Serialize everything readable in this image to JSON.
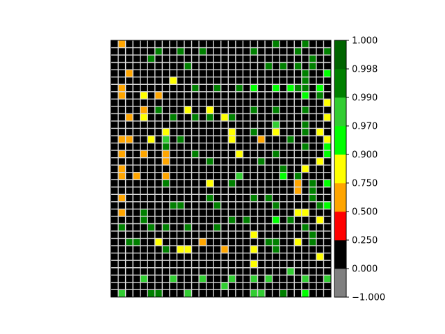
{
  "chart_data": {
    "type": "heatmap",
    "title": "",
    "xlabel": "",
    "ylabel": "",
    "grid": true,
    "grid_color": "#d9d9d9",
    "frame_color": "#000000",
    "rows": 35,
    "cols": 30,
    "cells": [
      [
        0,
        1
      ],
      [
        0,
        22
      ],
      [
        0,
        26
      ],
      [
        1,
        6
      ],
      [
        1,
        9
      ],
      [
        1,
        12
      ],
      [
        1,
        19
      ],
      [
        1,
        25
      ],
      [
        1,
        29
      ],
      [
        2,
        5
      ],
      [
        2,
        27
      ],
      [
        3,
        10
      ],
      [
        3,
        21
      ],
      [
        3,
        23
      ],
      [
        3,
        25
      ],
      [
        3,
        27
      ],
      [
        4,
        2
      ],
      [
        4,
        26
      ],
      [
        4,
        29
      ],
      [
        5,
        8
      ],
      [
        5,
        26
      ],
      [
        6,
        1
      ],
      [
        6,
        11
      ],
      [
        6,
        14
      ],
      [
        6,
        17
      ],
      [
        6,
        19
      ],
      [
        6,
        22
      ],
      [
        6,
        24
      ],
      [
        6,
        25
      ],
      [
        6,
        26
      ],
      [
        6,
        28
      ],
      [
        7,
        1
      ],
      [
        7,
        4
      ],
      [
        7,
        6
      ],
      [
        7,
        26
      ],
      [
        7,
        28
      ],
      [
        8,
        29
      ],
      [
        9,
        4
      ],
      [
        9,
        6
      ],
      [
        9,
        10
      ],
      [
        9,
        13
      ],
      [
        9,
        19
      ],
      [
        9,
        22
      ],
      [
        9,
        26
      ],
      [
        10,
        2
      ],
      [
        10,
        4
      ],
      [
        10,
        8
      ],
      [
        10,
        11
      ],
      [
        10,
        13
      ],
      [
        10,
        15
      ],
      [
        10,
        16
      ],
      [
        10,
        29
      ],
      [
        11,
        22
      ],
      [
        11,
        26
      ],
      [
        12,
        7
      ],
      [
        12,
        16
      ],
      [
        12,
        19
      ],
      [
        12,
        22
      ],
      [
        12,
        26
      ],
      [
        12,
        28
      ],
      [
        13,
        1
      ],
      [
        13,
        2
      ],
      [
        13,
        5
      ],
      [
        13,
        7
      ],
      [
        13,
        9
      ],
      [
        13,
        16
      ],
      [
        13,
        20
      ],
      [
        13,
        24
      ],
      [
        13,
        29
      ],
      [
        14,
        7
      ],
      [
        14,
        26
      ],
      [
        14,
        29
      ],
      [
        15,
        1
      ],
      [
        15,
        4
      ],
      [
        15,
        7
      ],
      [
        15,
        11
      ],
      [
        15,
        17
      ],
      [
        15,
        22
      ],
      [
        15,
        29
      ],
      [
        16,
        7
      ],
      [
        16,
        13
      ],
      [
        16,
        20
      ],
      [
        16,
        28
      ],
      [
        17,
        1
      ],
      [
        17,
        23
      ],
      [
        17,
        26
      ],
      [
        18,
        1
      ],
      [
        18,
        3
      ],
      [
        18,
        7
      ],
      [
        18,
        17
      ],
      [
        18,
        23
      ],
      [
        18,
        25
      ],
      [
        19,
        7
      ],
      [
        19,
        13
      ],
      [
        19,
        16
      ],
      [
        19,
        25
      ],
      [
        19,
        27
      ],
      [
        19,
        29
      ],
      [
        20,
        25
      ],
      [
        20,
        27
      ],
      [
        21,
        1
      ],
      [
        21,
        13
      ],
      [
        21,
        19
      ],
      [
        21,
        21
      ],
      [
        21,
        27
      ],
      [
        22,
        8
      ],
      [
        22,
        9
      ],
      [
        22,
        14
      ],
      [
        22,
        22
      ],
      [
        22,
        28
      ],
      [
        22,
        29
      ],
      [
        23,
        1
      ],
      [
        23,
        4
      ],
      [
        23,
        25
      ],
      [
        23,
        26
      ],
      [
        24,
        4
      ],
      [
        24,
        16
      ],
      [
        24,
        18
      ],
      [
        24,
        22
      ],
      [
        24,
        24
      ],
      [
        24,
        28
      ],
      [
        25,
        1
      ],
      [
        25,
        5
      ],
      [
        25,
        7
      ],
      [
        25,
        10
      ],
      [
        25,
        14
      ],
      [
        25,
        26
      ],
      [
        26,
        19
      ],
      [
        26,
        27
      ],
      [
        27,
        2
      ],
      [
        27,
        3
      ],
      [
        27,
        6
      ],
      [
        27,
        12
      ],
      [
        27,
        21
      ],
      [
        27,
        22
      ],
      [
        27,
        25
      ],
      [
        27,
        27
      ],
      [
        28,
        7
      ],
      [
        28,
        9
      ],
      [
        28,
        10
      ],
      [
        28,
        15
      ],
      [
        28,
        19
      ],
      [
        28,
        22
      ],
      [
        29,
        28
      ],
      [
        30,
        19
      ],
      [
        31,
        24
      ],
      [
        32,
        4
      ],
      [
        32,
        8
      ],
      [
        32,
        12
      ],
      [
        32,
        16
      ],
      [
        32,
        19
      ],
      [
        32,
        21
      ],
      [
        32,
        26
      ],
      [
        32,
        29
      ],
      [
        33,
        15
      ],
      [
        34,
        1
      ],
      [
        34,
        5
      ],
      [
        34,
        6
      ],
      [
        34,
        10
      ],
      [
        34,
        19
      ],
      [
        34,
        20
      ],
      [
        34,
        23
      ],
      [
        34,
        26
      ]
    ],
    "values": [
      0.6,
      0.995,
      0.995,
      0.995,
      0.995,
      0.995,
      0.995,
      0.995,
      0.995,
      0.995,
      0.995,
      0.995,
      0.995,
      0.995,
      0.995,
      0.995,
      0.6,
      0.995,
      0.95,
      0.8,
      0.995,
      0.6,
      0.995,
      0.995,
      0.995,
      0.95,
      0.95,
      0.95,
      0.995,
      0.995,
      0.95,
      0.6,
      0.8,
      0.6,
      0.95,
      0.995,
      0.8,
      0.6,
      0.995,
      0.8,
      0.8,
      0.995,
      0.995,
      0.995,
      0.6,
      0.8,
      0.995,
      0.995,
      0.995,
      0.8,
      0.995,
      0.8,
      0.98,
      0.995,
      0.8,
      0.8,
      0.995,
      0.8,
      0.995,
      0.8,
      0.6,
      0.6,
      0.8,
      0.98,
      0.995,
      0.8,
      0.6,
      0.995,
      0.8,
      0.995,
      0.995,
      0.95,
      0.6,
      0.6,
      0.6,
      0.995,
      0.8,
      0.995,
      0.95,
      0.6,
      0.995,
      0.995,
      0.8,
      0.6,
      0.995,
      0.8,
      0.6,
      0.6,
      0.6,
      0.98,
      0.95,
      0.995,
      0.995,
      0.8,
      0.995,
      0.6,
      0.995,
      0.95,
      0.6,
      0.995,
      0.6,
      0.995,
      0.995,
      0.995,
      0.995,
      0.995,
      0.995,
      0.995,
      0.995,
      0.995,
      0.95,
      0.6,
      0.995,
      0.8,
      0.8,
      0.995,
      0.995,
      0.995,
      0.95,
      0.995,
      0.8,
      0.995,
      0.995,
      0.995,
      0.995,
      0.995,
      0.995,
      0.8,
      0.995,
      0.995,
      0.995,
      0.8,
      0.6,
      0.995,
      0.995,
      0.8,
      0.995,
      0.995,
      0.8,
      0.8,
      0.6,
      0.8,
      0.995,
      0.8,
      0.8,
      0.98,
      0.98,
      0.98,
      0.98,
      0.98,
      0.98,
      0.98,
      0.98,
      0.98,
      0.98,
      0.98,
      0.995,
      0.995,
      0.98,
      0.98,
      0.98,
      0.995,
      0.95
    ],
    "colorbar": {
      "boundaries": [
        -1.0,
        0.0,
        0.25,
        0.5,
        0.75,
        0.9,
        0.97,
        0.99,
        0.998,
        1.0
      ],
      "tick_labels": [
        "−1.000",
        "0.000",
        "0.250",
        "0.500",
        "0.750",
        "0.900",
        "0.970",
        "0.990",
        "0.998",
        "1.000"
      ],
      "colors": [
        "#808080",
        "#000000",
        "#ff0000",
        "#ffa500",
        "#ffff00",
        "#00ff00",
        "#32cd32",
        "#008000",
        "#006400"
      ]
    }
  }
}
